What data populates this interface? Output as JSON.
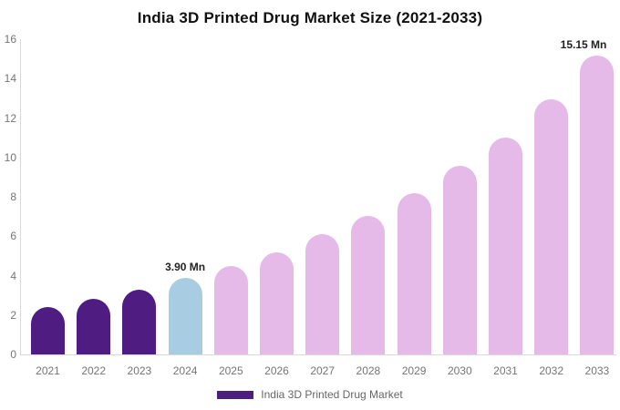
{
  "title": "India 3D Printed Drug Market Size (2021-2033)",
  "legend": {
    "label": "India 3D Printed Drug Market",
    "swatch_color": "#4f1d82"
  },
  "colors": {
    "historical_purple": "#4f1d82",
    "base_year_blue": "#a8cde2",
    "forecast_pink": "#e5bae8",
    "axis_line": "#d9d9d9",
    "tick_text": "#757575",
    "annotation_text": "#222222"
  },
  "chart_data": {
    "type": "bar",
    "title": "India 3D Printed Drug Market Size (2021-2033)",
    "xlabel": "",
    "ylabel": "",
    "unit": "Mn",
    "ylim": [
      0,
      16
    ],
    "y_ticks": [
      0,
      2,
      4,
      6,
      8,
      10,
      12,
      14,
      16
    ],
    "grid": false,
    "legend_position": "bottom",
    "categories": [
      "2021",
      "2022",
      "2023",
      "2024",
      "2025",
      "2026",
      "2027",
      "2028",
      "2029",
      "2030",
      "2031",
      "2032",
      "2033"
    ],
    "values": [
      2.4,
      2.8,
      3.3,
      3.9,
      4.5,
      5.2,
      6.1,
      7.05,
      8.2,
      9.55,
      11.0,
      12.95,
      15.15
    ],
    "bar_colors": [
      "#4f1d82",
      "#4f1d82",
      "#4f1d82",
      "#a8cde2",
      "#e5bae8",
      "#e5bae8",
      "#e5bae8",
      "#e5bae8",
      "#e5bae8",
      "#e5bae8",
      "#e5bae8",
      "#e5bae8",
      "#e5bae8"
    ],
    "annotations": [
      {
        "category": "2024",
        "text": "3.90 Mn"
      },
      {
        "category": "2033",
        "text": "15.15 Mn"
      }
    ],
    "series_name": "India 3D Printed Drug Market"
  }
}
